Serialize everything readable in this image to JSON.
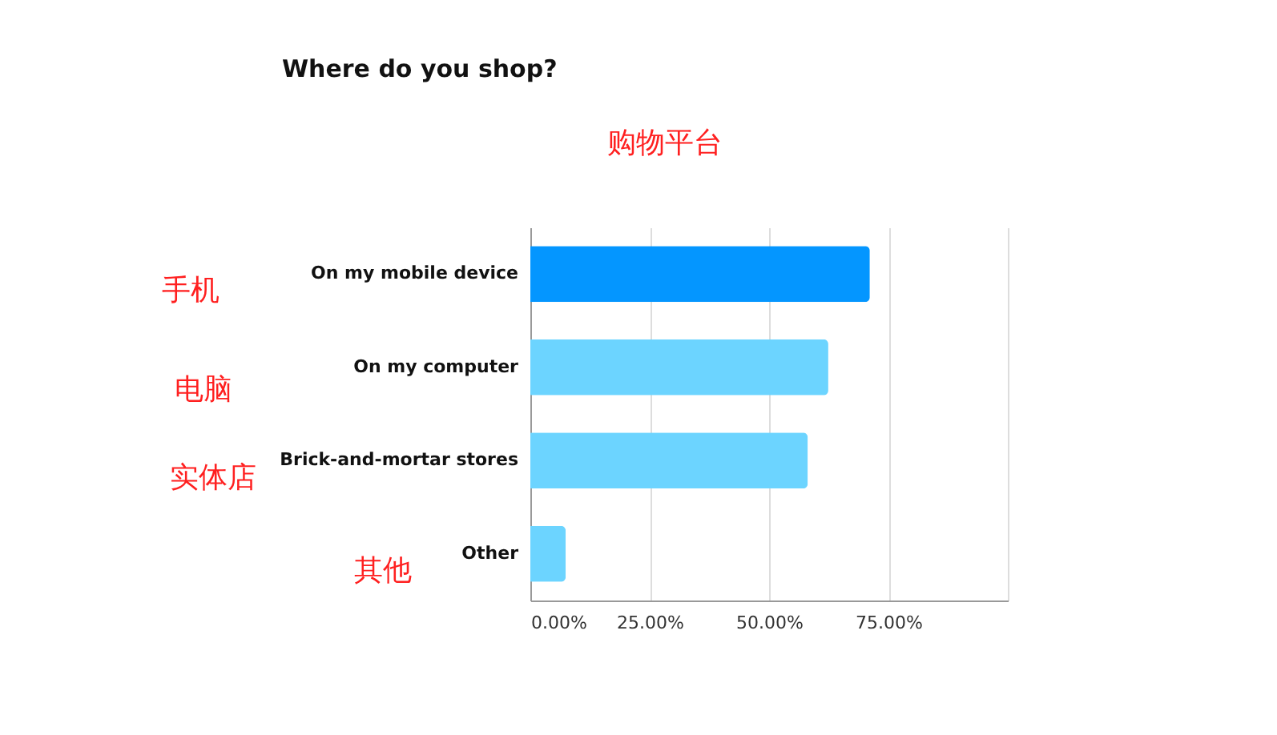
{
  "chart_data": {
    "type": "bar",
    "orientation": "horizontal",
    "title": "Where do you shop?",
    "categories": [
      "On my mobile device",
      "On my computer",
      "Brick-and-mortar stores",
      "Other"
    ],
    "values": [
      71.1,
      62.4,
      58.1,
      7.4
    ],
    "colors": [
      "#0496ff",
      "#6cd4ff",
      "#6cd4ff",
      "#6cd4ff"
    ],
    "xlim": [
      0,
      100
    ],
    "xticks": [
      {
        "value": 0,
        "label": "0.00%"
      },
      {
        "value": 25,
        "label": "25.00%"
      },
      {
        "value": 50,
        "label": "50.00%"
      },
      {
        "value": 75,
        "label": "75.00%"
      },
      {
        "value": 100,
        "label": null
      }
    ],
    "grid": "x",
    "annotations": [
      "购物平台",
      "手机",
      "电脑",
      "实体店",
      "其他"
    ]
  }
}
